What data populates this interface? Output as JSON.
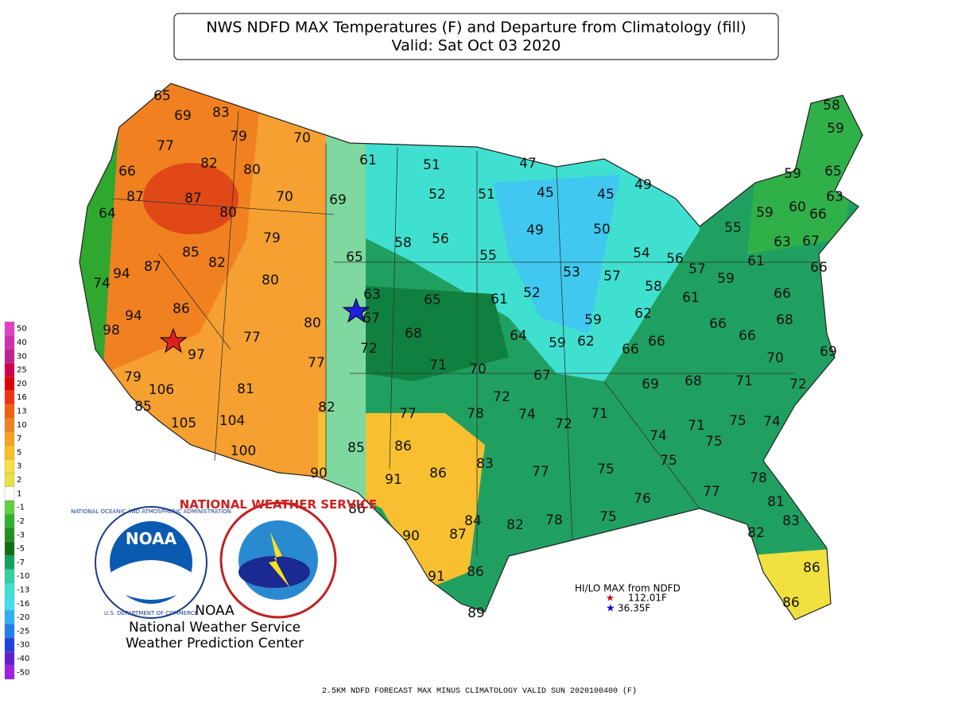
{
  "header": {
    "title": "NWS NDFD MAX Temperatures (F) and Departure from Climatology (fill)",
    "subtitle": "Valid: Sat Oct 03 2020"
  },
  "stations": [
    65,
    69,
    83,
    79,
    70,
    77,
    82,
    80,
    66,
    61,
    51,
    47,
    87,
    87,
    70,
    69,
    52,
    51,
    45,
    45,
    49,
    64,
    80,
    79,
    58,
    56,
    49,
    50,
    65,
    85,
    82,
    94,
    87,
    74,
    80,
    55,
    54,
    56,
    57,
    53,
    57,
    59,
    61,
    63,
    67,
    55,
    59,
    60,
    66,
    63,
    59,
    65,
    59,
    58,
    86,
    94,
    98,
    63,
    65,
    61,
    52,
    58,
    61,
    66,
    66,
    80,
    67,
    97,
    77,
    68,
    64,
    59,
    62,
    59,
    62,
    66,
    66,
    66,
    68,
    66,
    72,
    77,
    71,
    70,
    67,
    69,
    68,
    71,
    70,
    69,
    72,
    79,
    106,
    81,
    85,
    82,
    72,
    74,
    72,
    71,
    77,
    78,
    105,
    104,
    74,
    71,
    75,
    74,
    75,
    86,
    85,
    100,
    75,
    83,
    86,
    77,
    75,
    90,
    91,
    78,
    77,
    76,
    81,
    86,
    84,
    82,
    78,
    75,
    83,
    90,
    87,
    82,
    91,
    86,
    86,
    86,
    89
  ],
  "hilo": {
    "title": "HI/LO MAX from NDFD",
    "hi": "112.01F",
    "lo": "36.35F"
  },
  "legend": {
    "levels": [
      50,
      40,
      30,
      25,
      20,
      16,
      13,
      10,
      7,
      5,
      3,
      2,
      1,
      -1,
      -2,
      -3,
      -5,
      -7,
      -10,
      -13,
      -16,
      -20,
      -25,
      -30,
      -40,
      -50
    ],
    "colors": [
      "#e040c0",
      "#d030b0",
      "#c02090",
      "#d00050",
      "#e00000",
      "#f03010",
      "#f06010",
      "#f08020",
      "#f8a020",
      "#f8c020",
      "#f8e040",
      "#e8e040",
      "#ffffff",
      "#60d040",
      "#30b030",
      "#209020",
      "#107010",
      "#10a060",
      "#30d0a0",
      "#40e0d0",
      "#40e0f0",
      "#30b0f0",
      "#2080f0",
      "#2040e0",
      "#6020d0",
      "#a020e0"
    ]
  },
  "logos": {
    "noaa": "NOAA",
    "noaa_ring": "NATIONAL OCEANIC AND ATMOSPHERIC ADMINISTRATION",
    "noaa_dept": "U.S. DEPARTMENT OF COMMERCE",
    "nws_ring": "NATIONAL WEATHER SERVICE"
  },
  "credits": {
    "org": "NOAA",
    "service": "National Weather Service",
    "center": "Weather Prediction Center"
  },
  "footer": "2.5KM NDFD FORECAST MAX MINUS CLIMATOLOGY VALID SUN 2020100400 (F)"
}
